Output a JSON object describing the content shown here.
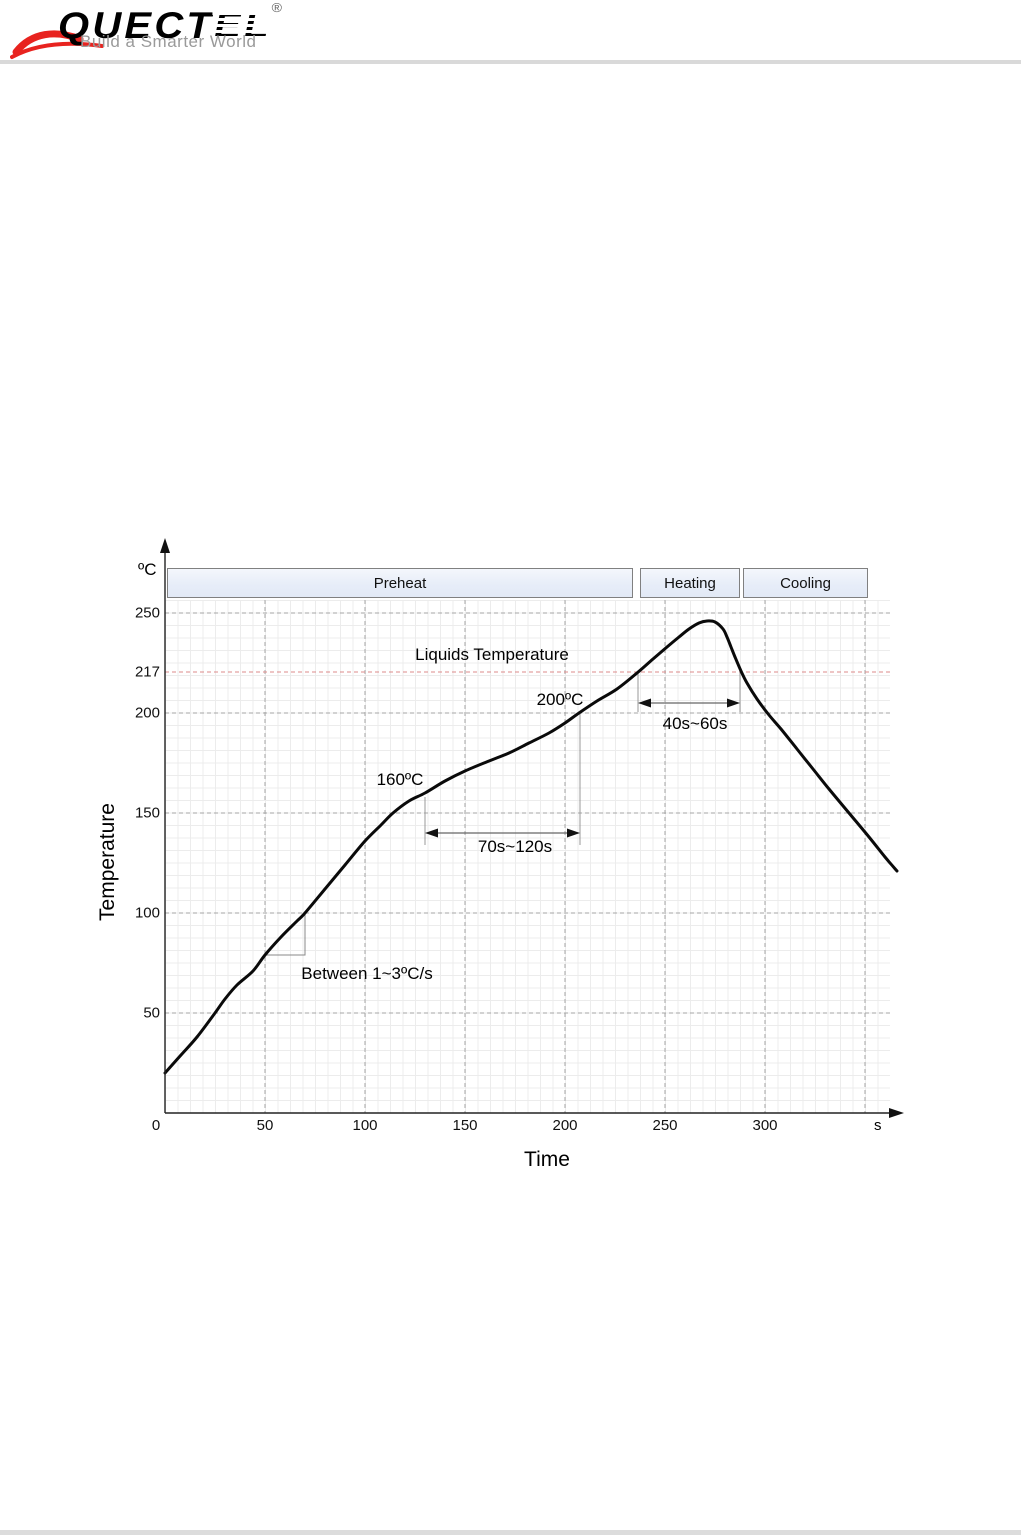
{
  "logo": {
    "brand_solid": "QUECT",
    "brand_striped": "EL",
    "registered": "®",
    "tagline": "Build a Smarter World"
  },
  "chart_data": {
    "type": "line",
    "title": "",
    "xlabel": "Time",
    "ylabel": "Temperature",
    "x_unit_label": "s",
    "y_unit_label": "ºC",
    "xlim": [
      0,
      362
    ],
    "ylim": [
      0,
      285
    ],
    "grid": "on",
    "x_tick_labels": [
      0,
      50,
      100,
      150,
      200,
      250,
      300
    ],
    "x_grid_values": [
      50,
      100,
      150,
      200,
      250,
      300,
      350
    ],
    "y_tick_labels": [
      50,
      100,
      150,
      200,
      250
    ],
    "liquidus_line": {
      "label": "217",
      "value_c": 217,
      "display_c": 220.5,
      "color": "#dd8b8b"
    },
    "phases": [
      {
        "label": "Preheat",
        "from_s": 1,
        "to_s": 234
      },
      {
        "label": "Heating",
        "from_s": 237.5,
        "to_s": 287.5
      },
      {
        "label": "Cooling",
        "from_s": 289,
        "to_s": 351.5
      }
    ],
    "series": [
      {
        "name": "reflow-profile",
        "points": [
          [
            0,
            20
          ],
          [
            8,
            29
          ],
          [
            16,
            38
          ],
          [
            25,
            50
          ],
          [
            30,
            57
          ],
          [
            36,
            64
          ],
          [
            44,
            71
          ],
          [
            50,
            79
          ],
          [
            58,
            88
          ],
          [
            66,
            96
          ],
          [
            70,
            100
          ],
          [
            80,
            112
          ],
          [
            90,
            124
          ],
          [
            100,
            136
          ],
          [
            108,
            144
          ],
          [
            114,
            150
          ],
          [
            122,
            156
          ],
          [
            130,
            160
          ],
          [
            140,
            166
          ],
          [
            150,
            171
          ],
          [
            162,
            176
          ],
          [
            172,
            180
          ],
          [
            182,
            185
          ],
          [
            192,
            190
          ],
          [
            200,
            195
          ],
          [
            207,
            200
          ],
          [
            216,
            206
          ],
          [
            226,
            212
          ],
          [
            236,
            220
          ],
          [
            244,
            227
          ],
          [
            251,
            233
          ],
          [
            257,
            238
          ],
          [
            262,
            242
          ],
          [
            267,
            245
          ],
          [
            271,
            246
          ],
          [
            275,
            245.5
          ],
          [
            279,
            242
          ],
          [
            281,
            238
          ],
          [
            283,
            233
          ],
          [
            285,
            228
          ],
          [
            288,
            221
          ],
          [
            291,
            215
          ],
          [
            296,
            207
          ],
          [
            302,
            199
          ],
          [
            308,
            192
          ],
          [
            316,
            182
          ],
          [
            324,
            172
          ],
          [
            332,
            162
          ],
          [
            342,
            150
          ],
          [
            352,
            138
          ],
          [
            360,
            128
          ],
          [
            366,
            121
          ]
        ]
      }
    ],
    "annotations": {
      "liquids_temperature": "Liquids Temperature",
      "temp_200": "200ºC",
      "temp_160": "160ºC",
      "ramp_rate": "Between 1~3ºC/s",
      "window_reflow": {
        "label": "40s~60s",
        "from_s": 236.5,
        "to_s": 287.5,
        "arrow_c": 205,
        "guide_top_c": 220.5,
        "guide_bottom_c": 200.5
      },
      "window_soak": {
        "label": "70s~120s",
        "from_s": 130,
        "to_s": 207.5,
        "arrow_c": 140,
        "left_top_c": 158,
        "right_top_c": 200.5,
        "guide_bottom_c": 134
      },
      "slope_indicator": {
        "t1_s": 50,
        "t2_s": 70,
        "c1": 79,
        "c2": 100
      }
    }
  }
}
